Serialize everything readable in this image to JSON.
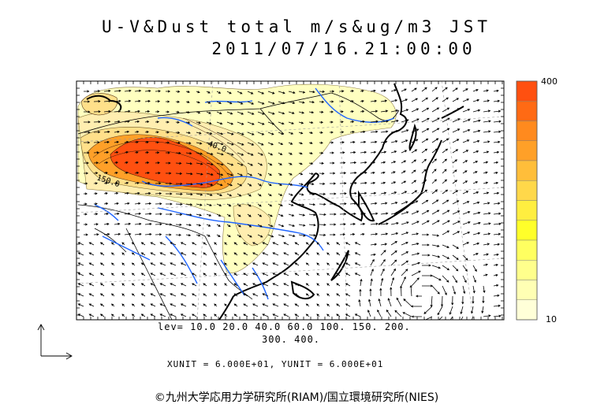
{
  "title": "U-V&Dust total m/s&ug/m3 JST",
  "datetime": "2011/07/16.21:00:00",
  "legend": {
    "levels_line1": "lev= 10.0 20.0 40.0 60.0 100. 150. 200.",
    "levels_line2": "300. 400.",
    "units": "XUNIT = 6.000E+01, YUNIT = 6.000E+01"
  },
  "colorbar": {
    "max_label": "400",
    "min_label": "10",
    "colors": [
      "#ff5010",
      "#ff6a14",
      "#ff8a1e",
      "#ffa028",
      "#ffbe3a",
      "#ffd84a",
      "#ffee40",
      "#ffff2a",
      "#ffff60",
      "#ffff8c",
      "#ffffb4",
      "#ffffd8"
    ]
  },
  "contour_labels": [
    "40.0",
    "150.0"
  ],
  "map_colors": {
    "coast": "#000000",
    "rivers": "#1e64ff",
    "dust_low": "#ffffc0",
    "dust_high": "#ff5010"
  },
  "credit": "©九州大学応用力学研究所(RIAM)/国立環境研究所(NIES)"
}
